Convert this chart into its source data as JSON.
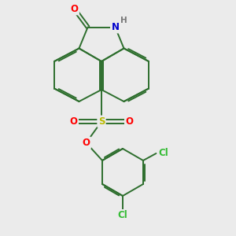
{
  "background_color": "#ebebeb",
  "bond_color": "#2d6e2d",
  "atom_colors": {
    "O": "#ff0000",
    "N": "#0000cc",
    "S": "#bbbb00",
    "Cl": "#33bb33",
    "H": "#777777"
  },
  "figsize": [
    3.0,
    3.0
  ],
  "dpi": 100
}
